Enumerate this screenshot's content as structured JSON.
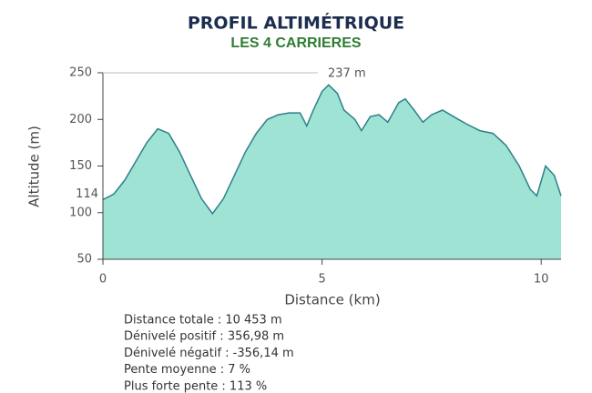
{
  "chart_data": {
    "type": "area",
    "title": "PROFIL ALTIMÉTRIQUE",
    "subtitle": "LES 4 CARRIERES",
    "x_label": "Distance (km)",
    "y_label": "Altitude (m)",
    "x": [
      0,
      0.25,
      0.5,
      0.75,
      1.0,
      1.25,
      1.5,
      1.75,
      2.0,
      2.25,
      2.5,
      2.75,
      3.0,
      3.25,
      3.5,
      3.75,
      4.0,
      4.25,
      4.5,
      4.65,
      4.8,
      5.0,
      5.15,
      5.35,
      5.5,
      5.75,
      5.9,
      6.1,
      6.3,
      6.5,
      6.75,
      6.9,
      7.1,
      7.3,
      7.5,
      7.75,
      8.0,
      8.3,
      8.6,
      8.9,
      9.2,
      9.5,
      9.75,
      9.9,
      10.1,
      10.3,
      10.453
    ],
    "series": [
      {
        "name": "Altitude",
        "color": "#9ee3d3",
        "stroke": "#2f7f8a",
        "values": [
          114,
          120,
          135,
          155,
          175,
          190,
          185,
          165,
          140,
          115,
          99,
          115,
          140,
          165,
          185,
          200,
          205,
          207,
          207,
          193,
          210,
          230,
          237,
          228,
          210,
          200,
          188,
          203,
          205,
          197,
          218,
          222,
          210,
          197,
          205,
          210,
          203,
          195,
          188,
          185,
          172,
          150,
          125,
          118,
          150,
          140,
          118
        ]
      }
    ],
    "xlim": [
      0,
      10.453
    ],
    "xticks": [
      0,
      5,
      10
    ],
    "ylim": [
      50,
      250
    ],
    "yticks": [
      50,
      100,
      150,
      200,
      250
    ],
    "annotations": [
      {
        "x": 5.15,
        "y": 237,
        "label": "237 m"
      },
      {
        "x": 0,
        "y": 114,
        "label": "114"
      }
    ],
    "stats": [
      "Distance totale : 10 453 m",
      "Dénivelé positif : 356,98 m",
      "Dénivelé négatif : -356,14 m",
      "Pente moyenne : 7 %",
      "Plus forte pente : 113 %"
    ]
  }
}
